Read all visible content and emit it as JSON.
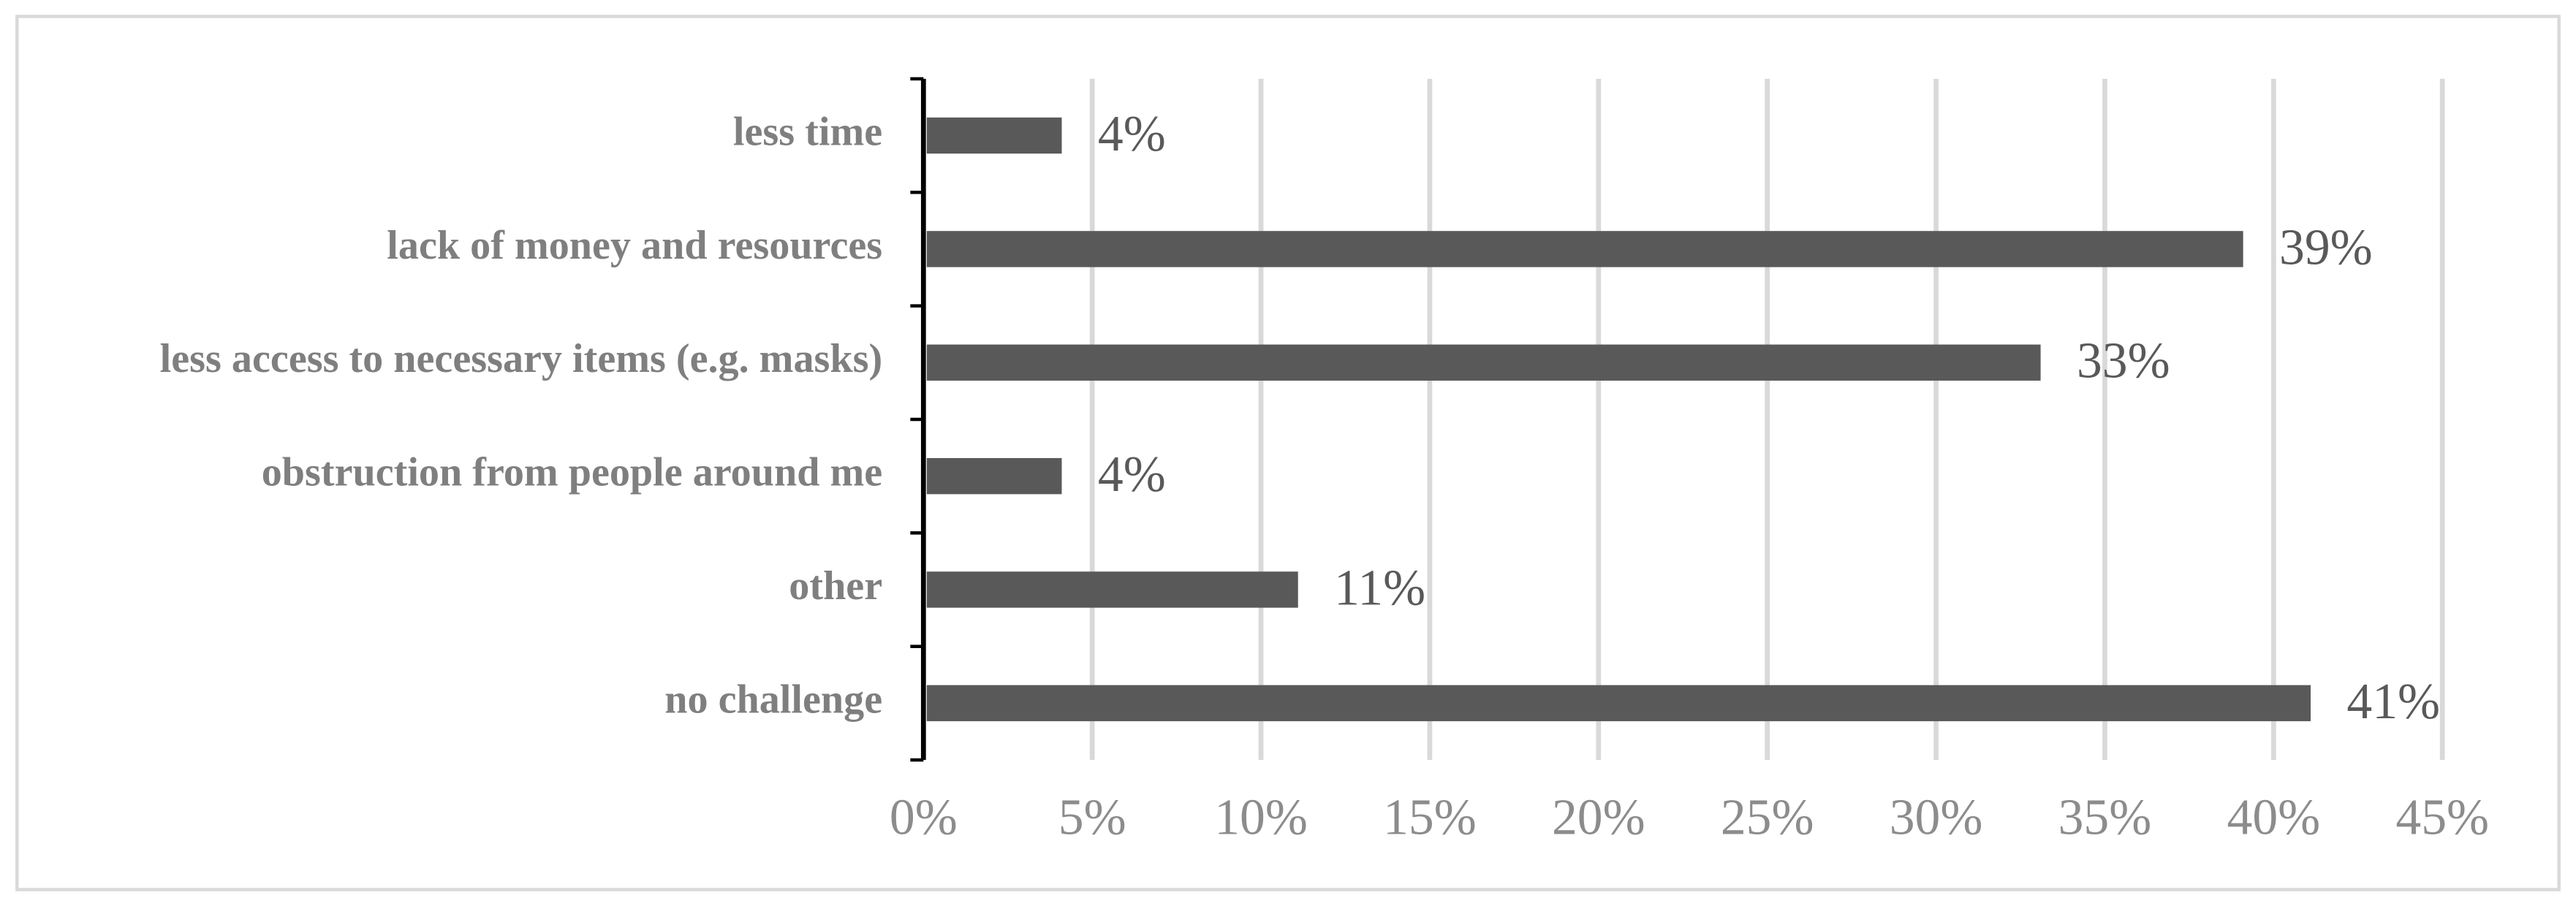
{
  "chart_data": {
    "type": "hbar",
    "categories": [
      "less time",
      "lack of money and resources",
      "less access to necessary items (e.g. masks)",
      "obstruction from people around me",
      "other",
      "no challenge"
    ],
    "values": [
      4,
      39,
      33,
      4,
      11,
      41
    ],
    "value_labels": [
      "4%",
      "39%",
      "33%",
      "4%",
      "11%",
      "41%"
    ],
    "color": "#595959",
    "xlim": [
      0,
      45
    ],
    "xticks": [
      {
        "value": 0,
        "label": "0%"
      },
      {
        "value": 5,
        "label": "5%"
      },
      {
        "value": 10,
        "label": "10%"
      },
      {
        "value": 15,
        "label": "15%"
      },
      {
        "value": 20,
        "label": "20%"
      },
      {
        "value": 25,
        "label": "25%"
      },
      {
        "value": 30,
        "label": "30%"
      },
      {
        "value": 35,
        "label": "35%"
      },
      {
        "value": 40,
        "label": "40%"
      },
      {
        "value": 45,
        "label": "45%"
      }
    ],
    "grid": true
  }
}
